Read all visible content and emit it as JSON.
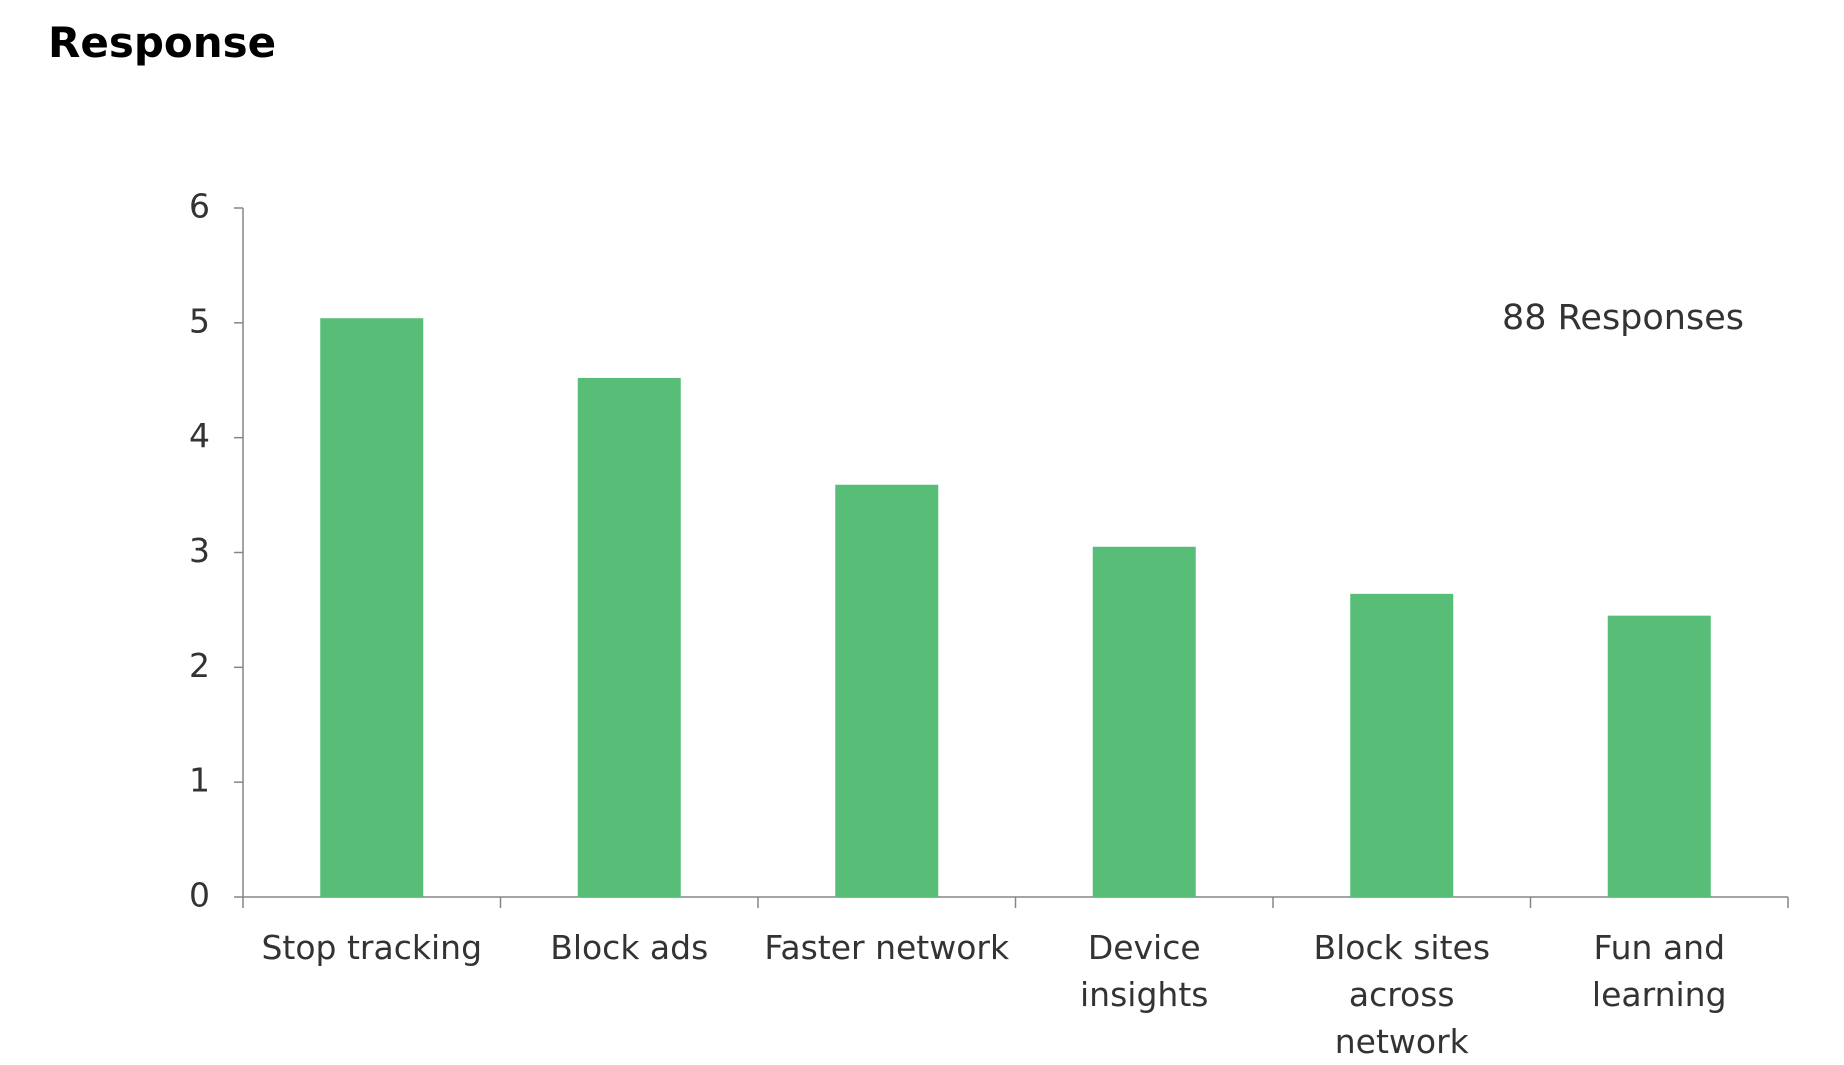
{
  "chart_data": {
    "type": "bar",
    "title": "Response",
    "annotation": "88 Responses",
    "categories": [
      "Stop tracking",
      "Block ads",
      "Faster network",
      "Device insights",
      "Block sites across network",
      "Fun and learning"
    ],
    "values": [
      5.04,
      4.52,
      3.59,
      3.05,
      2.64,
      2.45
    ],
    "color": "#57bd77",
    "ylim": [
      0,
      6
    ],
    "yticks": [
      0,
      1,
      2,
      3,
      4,
      5,
      6
    ],
    "grid": false
  }
}
